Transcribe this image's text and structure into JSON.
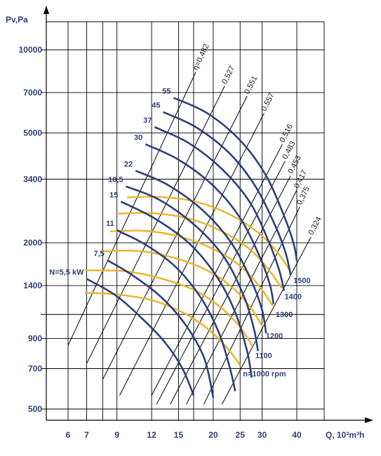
{
  "chart_data": {
    "type": "line",
    "title": "",
    "xlabel": "Q, 10³m³h",
    "ylabel": "Pv,Pa",
    "x_scale": "log",
    "y_scale": "log",
    "xlim": [
      5.3,
      48
    ],
    "ylim": [
      470,
      14000
    ],
    "grid": true,
    "x_ticks": [
      {
        "value": 6,
        "label": "6"
      },
      {
        "value": 7,
        "label": "7"
      },
      {
        "value": 9,
        "label": "9"
      },
      {
        "value": 12,
        "label": "12"
      },
      {
        "value": 15,
        "label": "15"
      },
      {
        "value": 20,
        "label": "20"
      },
      {
        "value": 25,
        "label": "25"
      },
      {
        "value": 30,
        "label": "30"
      },
      {
        "value": 40,
        "label": "40"
      }
    ],
    "x_extra_grid": [
      8,
      17
    ],
    "y_ticks": [
      {
        "value": 500,
        "label": "500"
      },
      {
        "value": 700,
        "label": "700"
      },
      {
        "value": 900,
        "label": "900"
      },
      {
        "value": 1400,
        "label": "1400"
      },
      {
        "value": 2000,
        "label": "2000"
      },
      {
        "value": 3400,
        "label": "3400"
      },
      {
        "value": 5000,
        "label": "5000"
      },
      {
        "value": 7000,
        "label": "7000"
      },
      {
        "value": 10000,
        "label": "10000"
      }
    ],
    "y_extra_grid": [
      1100
    ],
    "power_curves_kW": [
      {
        "label": "N=5,5 kW",
        "points": [
          [
            7.0,
            1480
          ],
          [
            8.8,
            1300
          ],
          [
            10.7,
            1100
          ],
          [
            13.3,
            880
          ],
          [
            15.5,
            700
          ],
          [
            17.0,
            560
          ]
        ]
      },
      {
        "label": "7,5",
        "points": [
          [
            8.3,
            1730
          ],
          [
            10.2,
            1530
          ],
          [
            13.0,
            1270
          ],
          [
            16.0,
            1000
          ],
          [
            18.6,
            760
          ],
          [
            20.0,
            550
          ]
        ]
      },
      {
        "label": "11",
        "points": [
          [
            9.0,
            2220
          ],
          [
            11.3,
            1980
          ],
          [
            14.5,
            1650
          ],
          [
            18.0,
            1270
          ],
          [
            21.0,
            940
          ],
          [
            23.0,
            700
          ],
          [
            24.0,
            580
          ]
        ]
      },
      {
        "label": "15",
        "points": [
          [
            9.3,
            2820
          ],
          [
            12.3,
            2450
          ],
          [
            16.3,
            2000
          ],
          [
            20.5,
            1520
          ],
          [
            24.0,
            1120
          ],
          [
            26.5,
            810
          ],
          [
            27.5,
            650
          ]
        ]
      },
      {
        "label": "18,5",
        "points": [
          [
            9.7,
            3200
          ],
          [
            12.8,
            2860
          ],
          [
            17.3,
            2300
          ],
          [
            22.0,
            1760
          ],
          [
            25.8,
            1280
          ],
          [
            28.0,
            980
          ],
          [
            29.0,
            810
          ]
        ]
      },
      {
        "label": "22",
        "points": [
          [
            10.5,
            3650
          ],
          [
            13.8,
            3230
          ],
          [
            18.5,
            2600
          ],
          [
            23.3,
            1990
          ],
          [
            27.5,
            1450
          ],
          [
            30.0,
            1140
          ],
          [
            31.0,
            940
          ]
        ]
      },
      {
        "label": "30",
        "points": [
          [
            11.4,
            4550
          ],
          [
            15.0,
            4000
          ],
          [
            20.0,
            3220
          ],
          [
            25.0,
            2460
          ],
          [
            29.5,
            1770
          ],
          [
            32.0,
            1410
          ],
          [
            33.0,
            1200
          ]
        ]
      },
      {
        "label": "37",
        "points": [
          [
            12.3,
            5250
          ],
          [
            16.3,
            4600
          ],
          [
            21.5,
            3700
          ],
          [
            27.0,
            2820
          ],
          [
            31.5,
            2050
          ],
          [
            34.5,
            1600
          ],
          [
            36.0,
            1340
          ]
        ]
      },
      {
        "label": "45",
        "points": [
          [
            13.2,
            5950
          ],
          [
            17.3,
            5250
          ],
          [
            23.0,
            4200
          ],
          [
            28.5,
            3180
          ],
          [
            33.5,
            2300
          ],
          [
            36.5,
            1830
          ],
          [
            38.0,
            1530
          ]
        ]
      },
      {
        "label": "55",
        "points": [
          [
            14.4,
            6700
          ],
          [
            19.0,
            5900
          ],
          [
            25.0,
            4700
          ],
          [
            31.0,
            3500
          ],
          [
            36.0,
            2500
          ],
          [
            39.0,
            1980
          ],
          [
            40.0,
            1720
          ]
        ]
      }
    ],
    "speed_curves_rpm": [
      {
        "label": "n=1000 rpm",
        "points": [
          [
            6.9,
            1320
          ],
          [
            9.0,
            1300
          ],
          [
            12.0,
            1240
          ],
          [
            15.5,
            1120
          ],
          [
            19.0,
            980
          ],
          [
            22.5,
            830
          ],
          [
            25.0,
            720
          ]
        ]
      },
      {
        "label": "1100",
        "points": [
          [
            6.9,
            1590
          ],
          [
            9.5,
            1580
          ],
          [
            12.5,
            1500
          ],
          [
            17.0,
            1350
          ],
          [
            21.0,
            1180
          ],
          [
            25.0,
            990
          ],
          [
            27.7,
            840
          ]
        ]
      },
      {
        "label": "1200",
        "points": [
          [
            7.8,
            1860
          ],
          [
            10.5,
            1870
          ],
          [
            14.0,
            1780
          ],
          [
            18.5,
            1610
          ],
          [
            23.0,
            1400
          ],
          [
            27.0,
            1180
          ],
          [
            30.2,
            990
          ]
        ]
      },
      {
        "label": "1300",
        "points": [
          [
            8.5,
            2200
          ],
          [
            11.3,
            2210
          ],
          [
            15.0,
            2110
          ],
          [
            20.0,
            1900
          ],
          [
            25.0,
            1650
          ],
          [
            29.5,
            1380
          ],
          [
            32.8,
            1180
          ]
        ]
      },
      {
        "label": "1400",
        "points": [
          [
            9.1,
            2550
          ],
          [
            12.2,
            2560
          ],
          [
            16.5,
            2440
          ],
          [
            21.5,
            2200
          ],
          [
            27.0,
            1900
          ],
          [
            31.5,
            1610
          ],
          [
            35.3,
            1370
          ]
        ]
      },
      {
        "label": "1500",
        "points": [
          [
            9.8,
            2920
          ],
          [
            13.0,
            2930
          ],
          [
            17.5,
            2810
          ],
          [
            23.0,
            2530
          ],
          [
            29.0,
            2180
          ],
          [
            34.0,
            1850
          ],
          [
            38.0,
            1570
          ]
        ]
      }
    ],
    "efficiency_lines": [
      {
        "label": "η=0,482",
        "start": [
          6.0,
          850
        ],
        "end": [
          17.3,
          8300
        ]
      },
      {
        "label": "0,527",
        "start": [
          7.0,
          730
        ],
        "end": [
          22.0,
          7400
        ]
      },
      {
        "label": "0,551",
        "start": [
          8.0,
          640
        ],
        "end": [
          26.5,
          6800
        ]
      },
      {
        "label": "0,557",
        "start": [
          9.2,
          560
        ],
        "end": [
          30.5,
          5900
        ]
      },
      {
        "label": "0,516",
        "start": [
          12.0,
          560
        ],
        "end": [
          35.5,
          4550
        ]
      },
      {
        "label": "0,483",
        "start": [
          12.5,
          520
        ],
        "end": [
          36.3,
          3950
        ]
      },
      {
        "label": "0,453",
        "start": [
          14.0,
          520
        ],
        "end": [
          38.0,
          3500
        ]
      },
      {
        "label": "0,417",
        "start": [
          16.0,
          520
        ],
        "end": [
          40.0,
          3100
        ]
      },
      {
        "label": "0,375",
        "start": [
          18.5,
          520
        ],
        "end": [
          41.0,
          2700
        ]
      },
      {
        "label": "0,324",
        "start": [
          21.5,
          520
        ],
        "end": [
          45.0,
          2100
        ]
      }
    ]
  }
}
